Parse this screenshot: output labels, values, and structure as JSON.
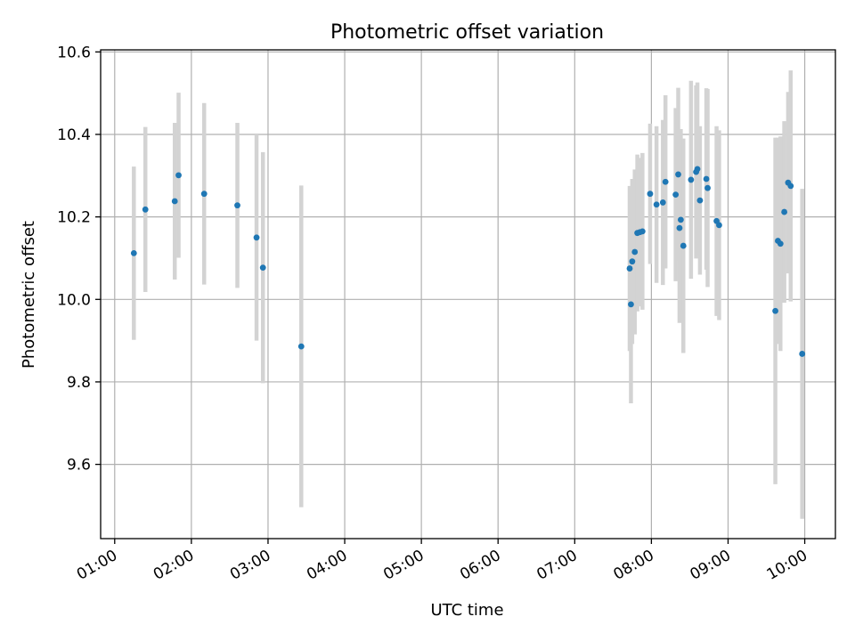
{
  "chart_data": {
    "type": "scatter",
    "title": "Photometric offset variation",
    "xlabel": "UTC time",
    "ylabel": "Photometric offset",
    "x_axis_kind": "time",
    "xlim": [
      "00:49",
      "10:24"
    ],
    "ylim": [
      9.42,
      10.605
    ],
    "xticks": [
      "01:00",
      "02:00",
      "03:00",
      "04:00",
      "05:00",
      "06:00",
      "07:00",
      "08:00",
      "09:00",
      "10:00"
    ],
    "yticks": [
      9.6,
      9.8,
      10.0,
      10.2,
      10.4,
      10.6
    ],
    "grid": true,
    "marker_color": "#1f77b4",
    "errorbar_color": "#d3d3d3",
    "series": [
      {
        "points": [
          {
            "t": "01:15",
            "y": 10.112,
            "err": 0.21
          },
          {
            "t": "01:24",
            "y": 10.218,
            "err": 0.2
          },
          {
            "t": "01:47",
            "y": 10.238,
            "err": 0.19
          },
          {
            "t": "01:50",
            "y": 10.301,
            "err": 0.2
          },
          {
            "t": "02:10",
            "y": 10.256,
            "err": 0.22
          },
          {
            "t": "02:36",
            "y": 10.228,
            "err": 0.2
          },
          {
            "t": "02:51",
            "y": 10.15,
            "err": 0.25
          },
          {
            "t": "02:56",
            "y": 10.077,
            "err": 0.28
          },
          {
            "t": "03:26",
            "y": 9.886,
            "err": 0.39
          },
          {
            "t": "07:43",
            "y": 10.075,
            "err": 0.2
          },
          {
            "t": "07:44",
            "y": 9.988,
            "err": 0.24
          },
          {
            "t": "07:45",
            "y": 10.092,
            "err": 0.2
          },
          {
            "t": "07:47",
            "y": 10.115,
            "err": 0.2
          },
          {
            "t": "07:49",
            "y": 10.161,
            "err": 0.19
          },
          {
            "t": "07:51",
            "y": 10.163,
            "err": 0.18
          },
          {
            "t": "07:53",
            "y": 10.165,
            "err": 0.19
          },
          {
            "t": "07:59",
            "y": 10.256,
            "err": 0.17
          },
          {
            "t": "08:04",
            "y": 10.23,
            "err": 0.19
          },
          {
            "t": "08:09",
            "y": 10.235,
            "err": 0.2
          },
          {
            "t": "08:11",
            "y": 10.285,
            "err": 0.21
          },
          {
            "t": "08:19",
            "y": 10.254,
            "err": 0.21
          },
          {
            "t": "08:21",
            "y": 10.303,
            "err": 0.21
          },
          {
            "t": "08:22",
            "y": 10.173,
            "err": 0.23
          },
          {
            "t": "08:23",
            "y": 10.193,
            "err": 0.22
          },
          {
            "t": "08:25",
            "y": 10.13,
            "err": 0.26
          },
          {
            "t": "08:31",
            "y": 10.29,
            "err": 0.24
          },
          {
            "t": "08:35",
            "y": 10.309,
            "err": 0.21
          },
          {
            "t": "08:36",
            "y": 10.316,
            "err": 0.21
          },
          {
            "t": "08:38",
            "y": 10.24,
            "err": 0.18
          },
          {
            "t": "08:43",
            "y": 10.292,
            "err": 0.22
          },
          {
            "t": "08:44",
            "y": 10.27,
            "err": 0.24
          },
          {
            "t": "08:51",
            "y": 10.19,
            "err": 0.23
          },
          {
            "t": "08:53",
            "y": 10.18,
            "err": 0.23
          },
          {
            "t": "09:37",
            "y": 9.972,
            "err": 0.42
          },
          {
            "t": "09:39",
            "y": 10.142,
            "err": 0.25
          },
          {
            "t": "09:41",
            "y": 10.135,
            "err": 0.26
          },
          {
            "t": "09:44",
            "y": 10.212,
            "err": 0.22
          },
          {
            "t": "09:47",
            "y": 10.283,
            "err": 0.22
          },
          {
            "t": "09:49",
            "y": 10.275,
            "err": 0.28
          },
          {
            "t": "09:58",
            "y": 9.868,
            "err": 0.4
          }
        ]
      }
    ]
  }
}
